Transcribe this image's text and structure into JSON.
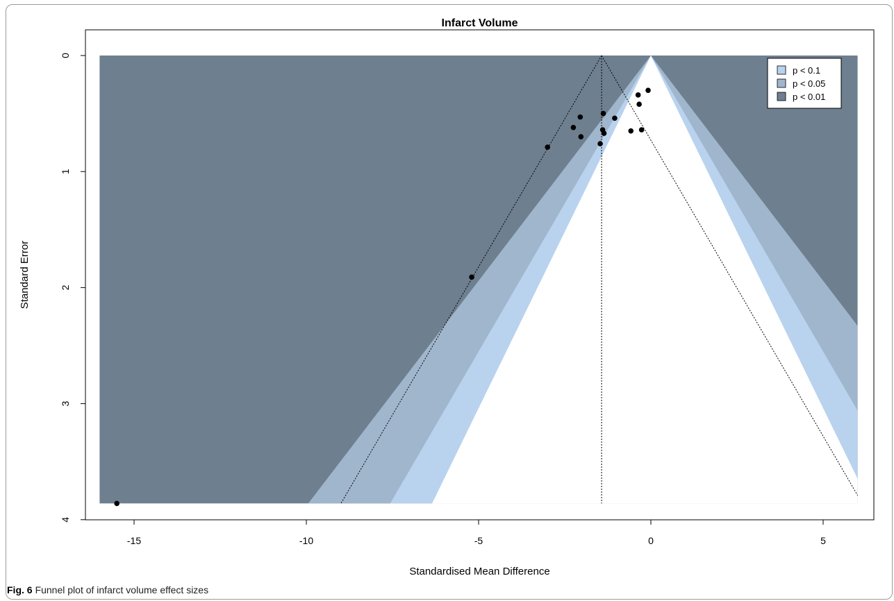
{
  "chart_data": {
    "type": "scatter",
    "title": "Infarct Volume",
    "xlabel": "Standardised Mean Difference",
    "ylabel": "Standard Error",
    "xlim": [
      -16,
      6
    ],
    "ylim": [
      0,
      4
    ],
    "y_axis_reversed": true,
    "x_ticks": [
      -15,
      -10,
      -5,
      0,
      5
    ],
    "y_ticks": [
      0,
      1,
      2,
      3,
      4
    ],
    "grid": false,
    "legend_position": "top-right",
    "legend": [
      {
        "label": "p < 0.1",
        "color": "#b9d3ee"
      },
      {
        "label": "p < 0.05",
        "color": "#a0b6cd"
      },
      {
        "label": "p < 0.01",
        "color": "#6e7f8f"
      }
    ],
    "contour_z": [
      1.645,
      1.96,
      2.576
    ],
    "pooled_estimate": -1.43,
    "points": [
      {
        "x": -15.5,
        "y": 3.86
      },
      {
        "x": -5.2,
        "y": 1.91
      },
      {
        "x": -3.0,
        "y": 0.79
      },
      {
        "x": -2.05,
        "y": 0.53
      },
      {
        "x": -2.25,
        "y": 0.62
      },
      {
        "x": -2.03,
        "y": 0.7
      },
      {
        "x": -1.38,
        "y": 0.5
      },
      {
        "x": -1.4,
        "y": 0.64
      },
      {
        "x": -1.36,
        "y": 0.67
      },
      {
        "x": -1.47,
        "y": 0.76
      },
      {
        "x": -1.05,
        "y": 0.54
      },
      {
        "x": -0.58,
        "y": 0.65
      },
      {
        "x": -0.27,
        "y": 0.64
      },
      {
        "x": -0.37,
        "y": 0.34
      },
      {
        "x": -0.34,
        "y": 0.42
      },
      {
        "x": -0.08,
        "y": 0.3
      }
    ]
  },
  "caption": {
    "label": "Fig. 6",
    "text": "Funnel plot of infarct volume effect sizes"
  }
}
